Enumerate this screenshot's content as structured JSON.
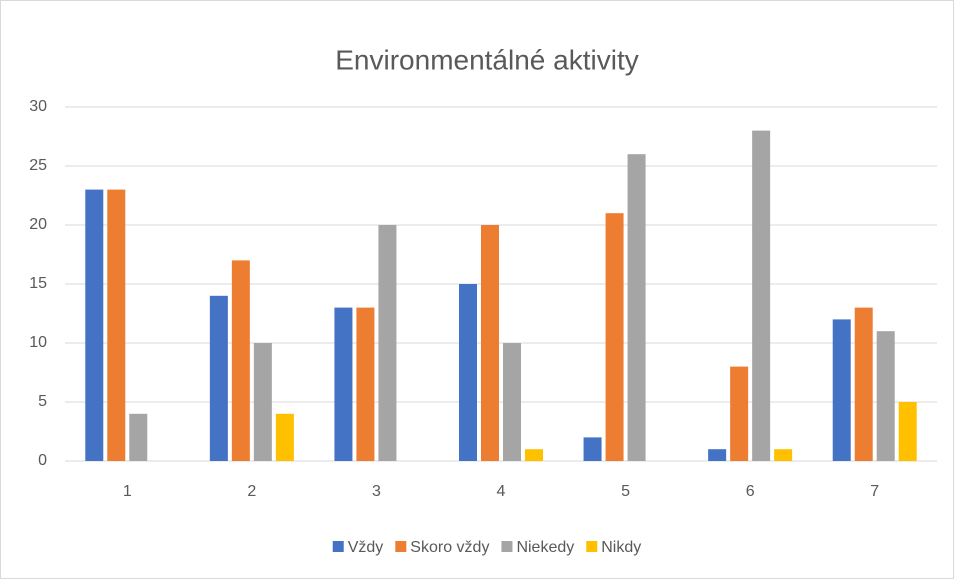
{
  "chart_data": {
    "type": "bar",
    "title": "Environmentálné aktivity",
    "categories": [
      "1",
      "2",
      "3",
      "4",
      "5",
      "6",
      "7"
    ],
    "series": [
      {
        "name": "Vždy",
        "color": "#4472c4",
        "values": [
          23,
          14,
          13,
          15,
          2,
          1,
          12
        ]
      },
      {
        "name": "Skoro vždy",
        "color": "#ed7d31",
        "values": [
          23,
          17,
          13,
          20,
          21,
          8,
          13
        ]
      },
      {
        "name": "Niekedy",
        "color": "#a5a5a5",
        "values": [
          4,
          10,
          20,
          10,
          26,
          28,
          11
        ]
      },
      {
        "name": "Nikdy",
        "color": "#ffc000",
        "values": [
          0,
          4,
          0,
          1,
          0,
          1,
          5
        ]
      }
    ],
    "ylim": [
      0,
      30
    ],
    "yticks": [
      0,
      5,
      10,
      15,
      20,
      25,
      30
    ],
    "grid": true,
    "legend": "bottom"
  }
}
